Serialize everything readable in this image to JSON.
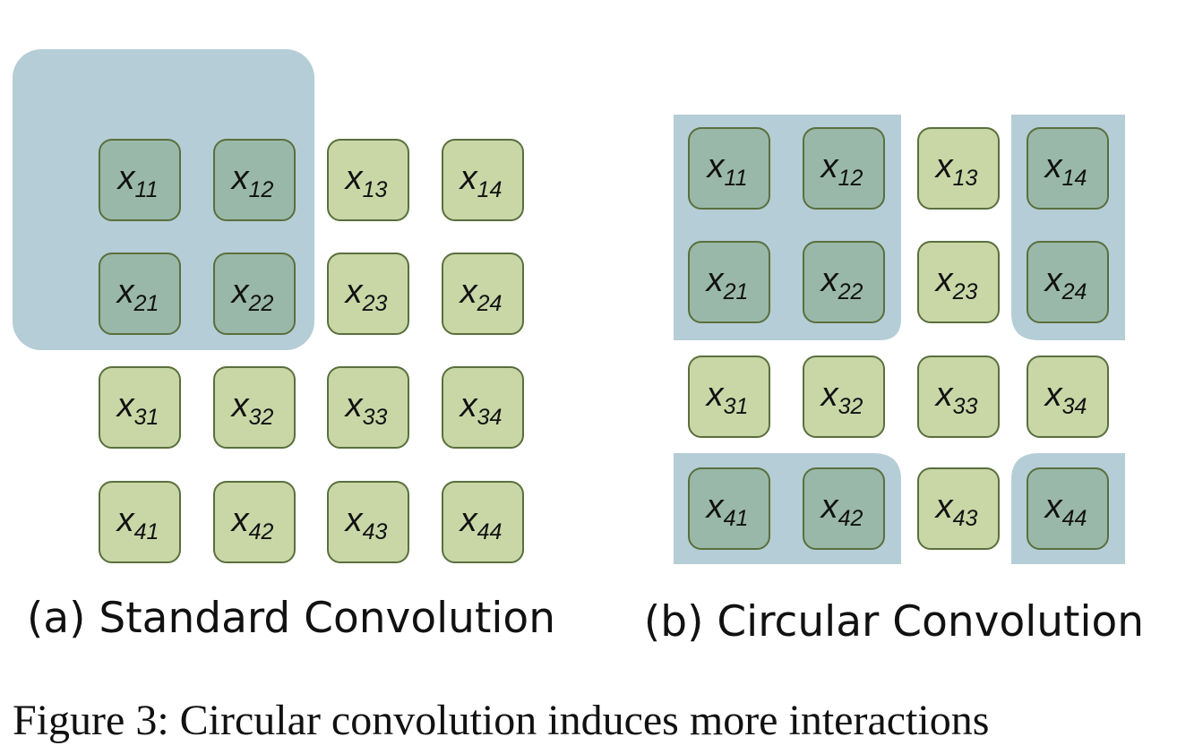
{
  "colors": {
    "highlight_region": "#b5cdd6",
    "inactive_cell_fill": "#c9d7a7",
    "active_cell_fill": "#99b8a9",
    "cell_border": "#5a6f3d",
    "text": "#111111"
  },
  "panels": [
    {
      "id": "a",
      "caption": "(a) Standard Convolution",
      "kernel_window": "top-left 2x2 (padded)",
      "cells": [
        {
          "var": "x",
          "sub": "11",
          "active": true
        },
        {
          "var": "x",
          "sub": "12",
          "active": true
        },
        {
          "var": "x",
          "sub": "13",
          "active": false
        },
        {
          "var": "x",
          "sub": "14",
          "active": false
        },
        {
          "var": "x",
          "sub": "21",
          "active": true
        },
        {
          "var": "x",
          "sub": "22",
          "active": true
        },
        {
          "var": "x",
          "sub": "23",
          "active": false
        },
        {
          "var": "x",
          "sub": "24",
          "active": false
        },
        {
          "var": "x",
          "sub": "31",
          "active": false
        },
        {
          "var": "x",
          "sub": "32",
          "active": false
        },
        {
          "var": "x",
          "sub": "33",
          "active": false
        },
        {
          "var": "x",
          "sub": "34",
          "active": false
        },
        {
          "var": "x",
          "sub": "41",
          "active": false
        },
        {
          "var": "x",
          "sub": "42",
          "active": false
        },
        {
          "var": "x",
          "sub": "43",
          "active": false
        },
        {
          "var": "x",
          "sub": "44",
          "active": false
        }
      ]
    },
    {
      "id": "b",
      "caption": "(b) Circular Convolution",
      "kernel_window": "wrapped 3x3 covering corners",
      "cells": [
        {
          "var": "x",
          "sub": "11",
          "active": true
        },
        {
          "var": "x",
          "sub": "12",
          "active": true
        },
        {
          "var": "x",
          "sub": "13",
          "active": false
        },
        {
          "var": "x",
          "sub": "14",
          "active": true
        },
        {
          "var": "x",
          "sub": "21",
          "active": true
        },
        {
          "var": "x",
          "sub": "22",
          "active": true
        },
        {
          "var": "x",
          "sub": "23",
          "active": false
        },
        {
          "var": "x",
          "sub": "24",
          "active": true
        },
        {
          "var": "x",
          "sub": "31",
          "active": false
        },
        {
          "var": "x",
          "sub": "32",
          "active": false
        },
        {
          "var": "x",
          "sub": "33",
          "active": false
        },
        {
          "var": "x",
          "sub": "34",
          "active": false
        },
        {
          "var": "x",
          "sub": "41",
          "active": true
        },
        {
          "var": "x",
          "sub": "42",
          "active": true
        },
        {
          "var": "x",
          "sub": "43",
          "active": false
        },
        {
          "var": "x",
          "sub": "44",
          "active": true
        }
      ]
    }
  ],
  "figure_caption": "Figure 3:  Circular convolution induces more interactions"
}
